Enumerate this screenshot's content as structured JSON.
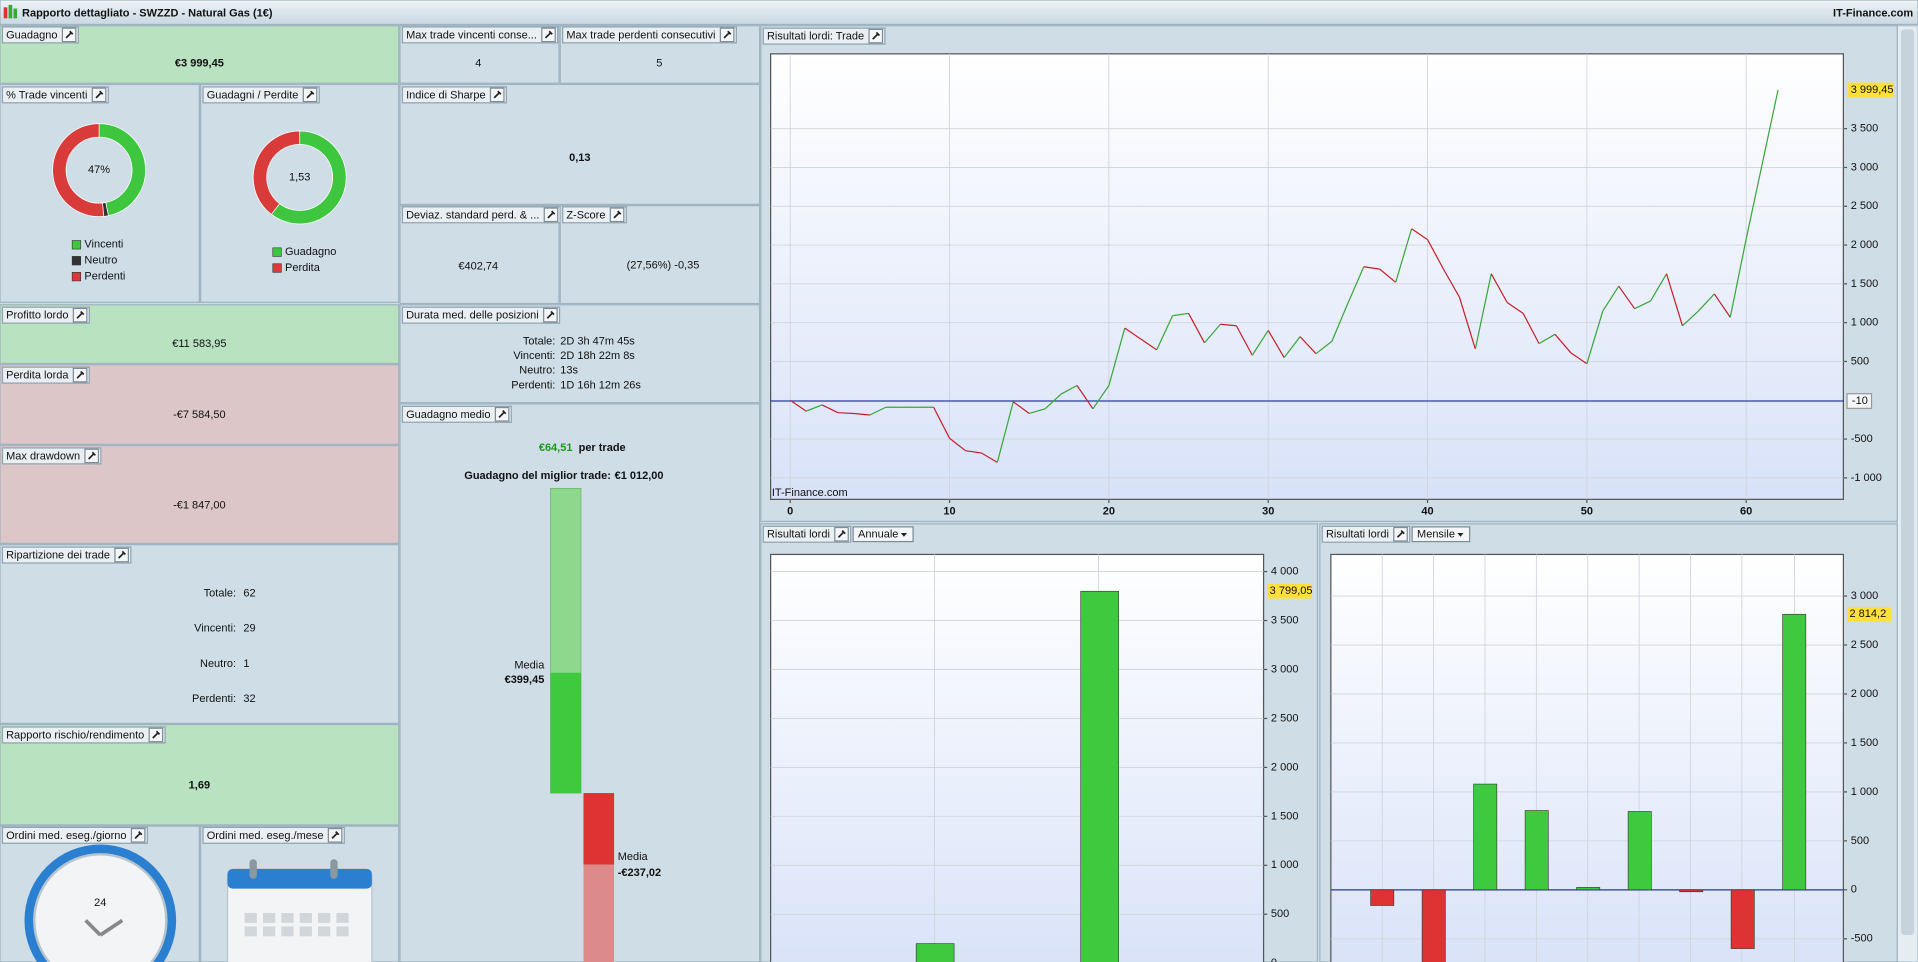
{
  "header": {
    "title": "Rapporto dettagliato - SWZZD - Natural Gas (1€)",
    "brand": "IT-Finance.com"
  },
  "guadagno": {
    "label": "Guadagno",
    "value": "€3 999,45"
  },
  "max_win": {
    "label": "Max trade vincenti conse...",
    "value": 4
  },
  "max_loss": {
    "label": "Max trade perdenti consecutivi",
    "value": 5
  },
  "win_rate": {
    "type": "pie",
    "label": "% Trade vincenti",
    "center": "47%",
    "categories": [
      "Vincenti",
      "Neutro",
      "Perdenti"
    ],
    "values": [
      29,
      1,
      32
    ],
    "colors": [
      "#3ec63e",
      "#333333",
      "#d93a3a"
    ]
  },
  "pnl_ratio": {
    "type": "pie",
    "label": "Guadagni / Perdite",
    "center": "1,53",
    "categories": [
      "Guadagno",
      "Perdita"
    ],
    "values": [
      11583.95,
      7584.5
    ],
    "colors": [
      "#3ec63e",
      "#d93a3a"
    ]
  },
  "sharpe": {
    "label": "Indice di Sharpe",
    "value": "0,13"
  },
  "std_dev": {
    "label": "Deviaz. standard perd. & ...",
    "value": "€402,74"
  },
  "z_score": {
    "label": "Z-Score",
    "value": "(27,56%) -0,35"
  },
  "gross_profit": {
    "label": "Profitto lordo",
    "value": "€11 583,95"
  },
  "avg_duration": {
    "label": "Durata med. delle posizioni",
    "rows": [
      [
        "Totale:",
        "2D 3h 47m 45s"
      ],
      [
        "Vincenti:",
        "2D 18h 22m 8s"
      ],
      [
        "Neutro:",
        "13s"
      ],
      [
        "Perdenti:",
        "1D 16h 12m 26s"
      ]
    ]
  },
  "gross_loss": {
    "label": "Perdita lorda",
    "value": "-€7 584,50"
  },
  "max_drawdown": {
    "label": "Max drawdown",
    "value": "-€1 847,00"
  },
  "avg_gain": {
    "type": "bar",
    "label": "Guadagno medio",
    "value": "€64,51",
    "unit": "per trade",
    "captions": [
      "Guadagno del miglior trade:",
      "Media",
      "Media"
    ],
    "values": [
      1012,
      399.45,
      -237.02
    ],
    "value_labels": [
      "€1 012,00",
      "€399,45",
      "-€237,02"
    ]
  },
  "breakdown": {
    "label": "Ripartizione dei trade",
    "rows": [
      {
        "name": "Totale:",
        "value": 62
      },
      {
        "name": "Vincenti:",
        "value": 29
      },
      {
        "name": "Neutro:",
        "value": 1
      },
      {
        "name": "Perdenti:",
        "value": 32
      }
    ]
  },
  "risk_reward": {
    "label": "Rapporto rischio/rendimento",
    "value": "1,69"
  },
  "orders_day": {
    "label": "Ordini med. eseg./giorno",
    "icon": "24"
  },
  "orders_month": {
    "label": "Ordini med. eseg./mese"
  },
  "trade_chart": {
    "type": "line",
    "title": "Risultati lordi: Trade",
    "watermark": "IT-Finance.com",
    "x": [
      0,
      1,
      2,
      3,
      4,
      5,
      6,
      7,
      8,
      9,
      10,
      11,
      12,
      13,
      14,
      15,
      16,
      17,
      18,
      19,
      20,
      21,
      22,
      23,
      24,
      25,
      26,
      27,
      28,
      29,
      30,
      31,
      32,
      33,
      34,
      35,
      36,
      37,
      38,
      39,
      40,
      41,
      42,
      43,
      44,
      45,
      46,
      47,
      48,
      49,
      50,
      51,
      52,
      53,
      54,
      55,
      56,
      57,
      58,
      59,
      60,
      61,
      62
    ],
    "values": [
      0,
      -140,
      -60,
      -160,
      -170,
      -190,
      -90,
      -90,
      -90,
      -90,
      -490,
      -650,
      -680,
      -800,
      -20,
      -170,
      -110,
      80,
      190,
      -110,
      190,
      930,
      790,
      650,
      1090,
      1120,
      740,
      980,
      960,
      580,
      900,
      550,
      820,
      600,
      760,
      1250,
      1720,
      1690,
      1520,
      2210,
      2070,
      1690,
      1330,
      660,
      1630,
      1260,
      1120,
      730,
      850,
      610,
      470,
      1150,
      1470,
      1180,
      1280,
      1630,
      960,
      1150,
      1370,
      1070,
      2080,
      3040,
      3999.45
    ],
    "up_color": "#3aa63a",
    "down_color": "#c8202a",
    "xlim": [
      -1.23,
      66.1
    ],
    "ylim": [
      -1277,
      4464
    ],
    "xticks": [
      0,
      10,
      20,
      30,
      40,
      50,
      60
    ],
    "yticks": [
      {
        "value": -1000,
        "label": "-1 000"
      },
      -500,
      500,
      {
        "value": 1000,
        "label": "1 000"
      },
      {
        "value": 1500,
        "label": "1 500"
      },
      {
        "value": 2000,
        "label": "2 000"
      },
      {
        "value": 2500,
        "label": "2 500"
      },
      {
        "value": 3000,
        "label": "3 000"
      },
      {
        "value": 3500,
        "label": "3 500"
      }
    ],
    "baseline": -10,
    "last_label": "3 999,45",
    "grid": true
  },
  "annual_chart": {
    "type": "bar",
    "title": "Risultati lordi",
    "period": "Annuale",
    "categories": [
      null,
      null
    ],
    "values": [
      200,
      3799.05
    ],
    "value_labels": [
      null,
      "3 799,05"
    ],
    "ylim": [
      0,
      4175
    ],
    "yticks": [
      0,
      500,
      {
        "value": 1000,
        "label": "1 000"
      },
      {
        "value": 1500,
        "label": "1 500"
      },
      {
        "value": 2000,
        "label": "2 000"
      },
      {
        "value": 2500,
        "label": "2 500"
      },
      {
        "value": 3000,
        "label": "3 000"
      },
      {
        "value": 3500,
        "label": "3 500"
      },
      {
        "value": 4000,
        "label": "4 000"
      }
    ]
  },
  "monthly_chart": {
    "type": "bar",
    "title": "Risultati lordi",
    "period": "Mensile",
    "categories": [
      null,
      null,
      null,
      null,
      null,
      null,
      null,
      null,
      null
    ],
    "values": [
      -160,
      -750,
      1080,
      810,
      25,
      800,
      -20,
      -600,
      2814.2
    ],
    "value_labels": [
      null,
      null,
      null,
      null,
      null,
      null,
      null,
      null,
      "2 814,2"
    ],
    "ylim": [
      -737,
      3425
    ],
    "yticks": [
      -500,
      0,
      500,
      {
        "value": 1000,
        "label": "1 000"
      },
      {
        "value": 1500,
        "label": "1 500"
      },
      {
        "value": 2000,
        "label": "2 000"
      },
      {
        "value": 2500,
        "label": "2 500"
      },
      {
        "value": 3000,
        "label": "3 000"
      }
    ]
  },
  "colors": {
    "up": "#3ec93e",
    "down": "#dd3333"
  }
}
